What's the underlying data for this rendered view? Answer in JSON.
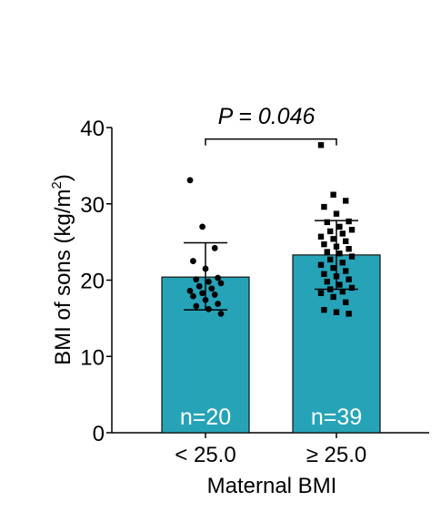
{
  "chart_data": {
    "type": "bar",
    "categories": [
      "< 25.0",
      "≥ 25.0"
    ],
    "values": [
      20.4,
      23.3
    ],
    "error_bars": [
      {
        "low": 16.1,
        "high": 24.9
      },
      {
        "low": 18.8,
        "high": 27.8
      }
    ],
    "sample_labels": [
      "n=20",
      "n=39"
    ],
    "ylabel": "BMI of sons (kg/m²)",
    "ylabel_main": "BMI of sons (kg/m",
    "ylabel_sup": "2",
    "ylabel_end": ")",
    "xlabel": "Maternal BMI",
    "ylim": [
      0,
      40
    ],
    "yticks": [
      0,
      10,
      20,
      30,
      40
    ],
    "significance": {
      "text": "P = 0.046",
      "y": 38.5
    },
    "bar_color": "#27a3b8",
    "points": [
      [
        33.1,
        27.0,
        24.2,
        22.5,
        21.5,
        20.3,
        20.1,
        19.8,
        19.6,
        19.2,
        18.9,
        18.6,
        18.3,
        18.1,
        17.9,
        17.4,
        16.9,
        16.6,
        16.2,
        15.6
      ],
      [
        37.7,
        31.2,
        30.4,
        29.6,
        28.7,
        27.7,
        27.6,
        27.0,
        26.6,
        26.4,
        26.1,
        25.7,
        25.4,
        25.1,
        24.7,
        24.4,
        24.1,
        23.7,
        23.5,
        23.1,
        22.7,
        22.3,
        22.0,
        21.6,
        21.2,
        20.8,
        20.5,
        20.1,
        19.8,
        19.4,
        19.0,
        18.8,
        18.5,
        18.3,
        17.8,
        17.1,
        16.1,
        15.8,
        15.6
      ]
    ]
  }
}
